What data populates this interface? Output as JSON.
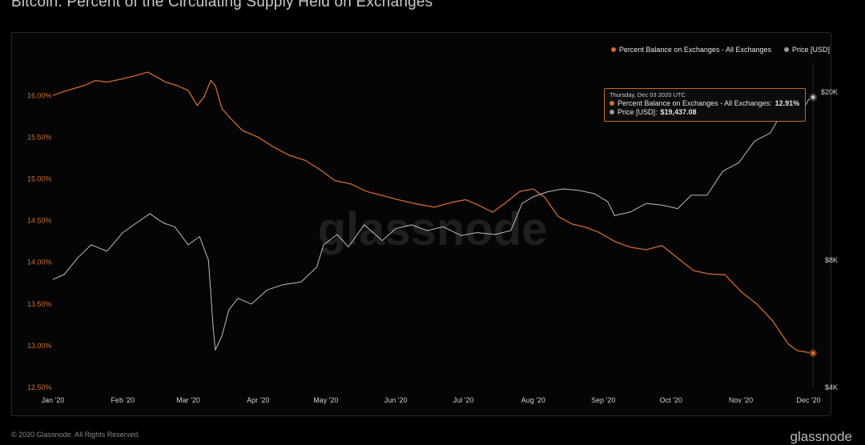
{
  "title": "Bitcoin: Percent of the Circulating Supply Held on Exchanges",
  "legend": {
    "series1": "Percent Balance on Exchanges - All Exchanges",
    "series2": "Price [USD]"
  },
  "tooltip": {
    "date": "Thursday, Dec 03 2020 UTC",
    "label1": "Percent Balance on Exchanges - All Exchanges:",
    "value1": "12.91%",
    "label2": "Price [USD]:",
    "value2": "$19,437.08"
  },
  "watermark": "glassnode",
  "footer": "© 2020 Glassnode. All Rights Reserved.",
  "brand": "glassnode",
  "colors": {
    "balance": "#d26b30",
    "price": "#bdbdbd",
    "background": "#000000",
    "tooltip_border": "#c26a2a"
  },
  "chart_data": {
    "type": "line",
    "title": "Bitcoin: Percent of the Circulating Supply Held on Exchanges",
    "x_tick_labels": [
      "Jan '20",
      "Feb '20",
      "Mar '20",
      "Apr '20",
      "May '20",
      "Jun '20",
      "Jul '20",
      "Aug '20",
      "Sep '20",
      "Oct '20",
      "Nov '20",
      "Dec '20"
    ],
    "x_range": [
      "2020-01-01",
      "2020-12-04"
    ],
    "y_left": {
      "ticks": [
        "12.50%",
        "13.00%",
        "13.50%",
        "14.00%",
        "14.50%",
        "15.00%",
        "15.50%",
        "16.00%"
      ],
      "range": [
        12.5,
        16.3
      ]
    },
    "y_right": {
      "ticks": [
        "$4K",
        "$8K",
        "$20K"
      ],
      "scale": "log",
      "range": [
        4000,
        22500
      ]
    },
    "grid": false,
    "legend_position": "top-right",
    "series": [
      {
        "name": "Percent Balance on Exchanges - All Exchanges",
        "axis": "left",
        "x": [
          "2020-01-01",
          "2020-01-05",
          "2020-01-10",
          "2020-01-15",
          "2020-01-20",
          "2020-01-25",
          "2020-02-01",
          "2020-02-07",
          "2020-02-12",
          "2020-02-16",
          "2020-02-20",
          "2020-02-25",
          "2020-03-01",
          "2020-03-05",
          "2020-03-08",
          "2020-03-11",
          "2020-03-13",
          "2020-03-16",
          "2020-03-20",
          "2020-03-25",
          "2020-04-01",
          "2020-04-08",
          "2020-04-15",
          "2020-04-22",
          "2020-04-29",
          "2020-05-05",
          "2020-05-12",
          "2020-05-19",
          "2020-05-26",
          "2020-06-02",
          "2020-06-10",
          "2020-06-18",
          "2020-06-26",
          "2020-07-02",
          "2020-07-08",
          "2020-07-14",
          "2020-07-20",
          "2020-07-26",
          "2020-08-01",
          "2020-08-06",
          "2020-08-12",
          "2020-08-18",
          "2020-08-24",
          "2020-08-30",
          "2020-09-06",
          "2020-09-13",
          "2020-09-20",
          "2020-09-27",
          "2020-10-04",
          "2020-10-11",
          "2020-10-18",
          "2020-10-25",
          "2020-11-01",
          "2020-11-08",
          "2020-11-15",
          "2020-11-22",
          "2020-11-26",
          "2020-12-03"
        ],
        "y": [
          16.0,
          16.04,
          16.08,
          16.12,
          16.18,
          16.16,
          16.2,
          16.24,
          16.28,
          16.22,
          16.16,
          16.12,
          16.06,
          15.88,
          15.98,
          16.18,
          16.12,
          15.84,
          15.72,
          15.58,
          15.5,
          15.38,
          15.28,
          15.22,
          15.1,
          14.98,
          14.94,
          14.85,
          14.8,
          14.75,
          14.7,
          14.66,
          14.72,
          14.75,
          14.68,
          14.6,
          14.72,
          14.85,
          14.88,
          14.78,
          14.55,
          14.46,
          14.42,
          14.36,
          14.25,
          14.18,
          14.15,
          14.2,
          14.05,
          13.9,
          13.86,
          13.85,
          13.65,
          13.5,
          13.3,
          13.02,
          12.94,
          12.91
        ]
      },
      {
        "name": "Price [USD]",
        "axis": "right",
        "x": [
          "2020-01-01",
          "2020-01-06",
          "2020-01-12",
          "2020-01-18",
          "2020-01-25",
          "2020-02-01",
          "2020-02-07",
          "2020-02-13",
          "2020-02-19",
          "2020-02-24",
          "2020-03-01",
          "2020-03-06",
          "2020-03-10",
          "2020-03-12",
          "2020-03-13",
          "2020-03-16",
          "2020-03-19",
          "2020-03-23",
          "2020-03-29",
          "2020-04-05",
          "2020-04-12",
          "2020-04-20",
          "2020-04-27",
          "2020-04-30",
          "2020-05-06",
          "2020-05-11",
          "2020-05-18",
          "2020-05-26",
          "2020-06-01",
          "2020-06-08",
          "2020-06-15",
          "2020-06-22",
          "2020-06-30",
          "2020-07-07",
          "2020-07-15",
          "2020-07-22",
          "2020-07-27",
          "2020-08-01",
          "2020-08-07",
          "2020-08-14",
          "2020-08-21",
          "2020-08-28",
          "2020-09-03",
          "2020-09-06",
          "2020-09-13",
          "2020-09-20",
          "2020-09-27",
          "2020-10-04",
          "2020-10-10",
          "2020-10-17",
          "2020-10-24",
          "2020-10-31",
          "2020-11-07",
          "2020-11-14",
          "2020-11-21",
          "2020-11-26",
          "2020-12-01",
          "2020-12-03"
        ],
        "y": [
          7200,
          7400,
          8100,
          8700,
          8400,
          9300,
          9800,
          10300,
          9800,
          9600,
          8700,
          9100,
          8000,
          5600,
          4900,
          5300,
          6100,
          6500,
          6300,
          6800,
          7000,
          7100,
          7700,
          8700,
          9200,
          8600,
          9700,
          8900,
          9500,
          9700,
          9400,
          9600,
          9150,
          9300,
          9200,
          9400,
          10900,
          11300,
          11600,
          11800,
          11700,
          11500,
          11000,
          10200,
          10400,
          10900,
          10800,
          10600,
          11400,
          11400,
          13000,
          13600,
          15300,
          16000,
          18600,
          17200,
          19200,
          19437
        ]
      }
    ]
  }
}
